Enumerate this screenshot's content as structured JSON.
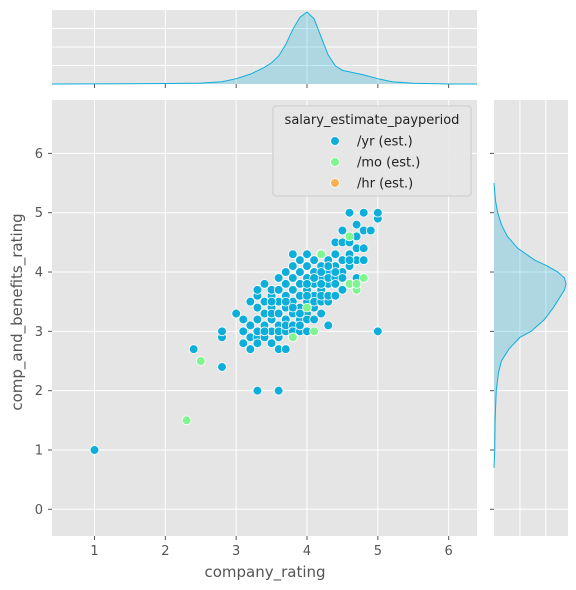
{
  "chart_data": {
    "type": "scatter",
    "xlabel": "company_rating",
    "ylabel": "comp_and_benefits_rating",
    "xlim": [
      0.4,
      6.4
    ],
    "ylim": [
      -0.45,
      6.9
    ],
    "x_ticks": [
      "1",
      "2",
      "3",
      "4",
      "5",
      "6"
    ],
    "y_ticks": [
      "0",
      "1",
      "2",
      "3",
      "4",
      "5",
      "6"
    ],
    "grid": true,
    "legend_title": "salary_estimate_payperiod",
    "legend_position": "top-right",
    "colors": {
      "/yr (est.)": "#0eaedb",
      "/mo (est.)": "#7ef58e",
      "/hr (est.)": "#f7b152"
    },
    "series": [
      {
        "name": "/yr (est.)",
        "color": "#0eaedb",
        "points": [
          [
            1.0,
            1.0
          ],
          [
            2.4,
            2.7
          ],
          [
            2.8,
            2.4
          ],
          [
            2.8,
            2.9
          ],
          [
            2.8,
            3.0
          ],
          [
            3.0,
            3.3
          ],
          [
            3.1,
            2.8
          ],
          [
            3.1,
            3.2
          ],
          [
            3.1,
            3.0
          ],
          [
            3.2,
            2.9
          ],
          [
            3.2,
            3.1
          ],
          [
            3.2,
            3.5
          ],
          [
            3.2,
            2.7
          ],
          [
            3.3,
            2.0
          ],
          [
            3.3,
            2.9
          ],
          [
            3.3,
            3.2
          ],
          [
            3.3,
            3.4
          ],
          [
            3.3,
            3.6
          ],
          [
            3.3,
            3.7
          ],
          [
            3.3,
            3.0
          ],
          [
            3.3,
            2.8
          ],
          [
            3.4,
            3.1
          ],
          [
            3.4,
            3.3
          ],
          [
            3.4,
            3.5
          ],
          [
            3.4,
            3.8
          ],
          [
            3.4,
            2.9
          ],
          [
            3.5,
            2.8
          ],
          [
            3.5,
            3.0
          ],
          [
            3.5,
            3.2
          ],
          [
            3.5,
            3.4
          ],
          [
            3.5,
            3.6
          ],
          [
            3.5,
            3.7
          ],
          [
            3.5,
            3.3
          ],
          [
            3.6,
            2.0
          ],
          [
            3.6,
            2.7
          ],
          [
            3.6,
            2.9
          ],
          [
            3.6,
            3.1
          ],
          [
            3.6,
            3.3
          ],
          [
            3.6,
            3.5
          ],
          [
            3.6,
            3.7
          ],
          [
            3.6,
            3.9
          ],
          [
            3.6,
            3.0
          ],
          [
            3.7,
            2.7
          ],
          [
            3.7,
            3.0
          ],
          [
            3.7,
            3.2
          ],
          [
            3.7,
            3.4
          ],
          [
            3.7,
            3.6
          ],
          [
            3.7,
            3.8
          ],
          [
            3.7,
            4.0
          ],
          [
            3.7,
            3.1
          ],
          [
            3.8,
            2.9
          ],
          [
            3.8,
            3.1
          ],
          [
            3.8,
            3.3
          ],
          [
            3.8,
            3.5
          ],
          [
            3.8,
            3.7
          ],
          [
            3.8,
            3.9
          ],
          [
            3.8,
            4.1
          ],
          [
            3.8,
            3.0
          ],
          [
            3.8,
            4.3
          ],
          [
            3.9,
            3.0
          ],
          [
            3.9,
            3.2
          ],
          [
            3.9,
            3.4
          ],
          [
            3.9,
            3.6
          ],
          [
            3.9,
            3.8
          ],
          [
            3.9,
            4.0
          ],
          [
            3.9,
            4.2
          ],
          [
            3.9,
            3.1
          ],
          [
            4.0,
            3.3
          ],
          [
            4.0,
            3.5
          ],
          [
            4.0,
            3.7
          ],
          [
            4.0,
            3.9
          ],
          [
            4.0,
            4.1
          ],
          [
            4.0,
            4.3
          ],
          [
            4.0,
            3.2
          ],
          [
            4.0,
            3.0
          ],
          [
            4.1,
            3.4
          ],
          [
            4.1,
            3.6
          ],
          [
            4.1,
            3.8
          ],
          [
            4.1,
            4.0
          ],
          [
            4.1,
            4.2
          ],
          [
            4.1,
            3.2
          ],
          [
            4.1,
            3.5
          ],
          [
            4.2,
            3.3
          ],
          [
            4.2,
            3.5
          ],
          [
            4.2,
            3.7
          ],
          [
            4.2,
            3.9
          ],
          [
            4.2,
            4.1
          ],
          [
            4.2,
            4.3
          ],
          [
            4.2,
            3.6
          ],
          [
            4.3,
            3.1
          ],
          [
            4.3,
            3.5
          ],
          [
            4.3,
            3.8
          ],
          [
            4.3,
            4.0
          ],
          [
            4.3,
            4.2
          ],
          [
            4.3,
            3.6
          ],
          [
            4.3,
            3.9
          ],
          [
            4.4,
            3.6
          ],
          [
            4.4,
            3.9
          ],
          [
            4.4,
            4.1
          ],
          [
            4.4,
            4.3
          ],
          [
            4.4,
            4.5
          ],
          [
            4.4,
            3.8
          ],
          [
            4.5,
            3.7
          ],
          [
            4.5,
            4.0
          ],
          [
            4.5,
            4.2
          ],
          [
            4.5,
            4.5
          ],
          [
            4.5,
            3.9
          ],
          [
            4.5,
            4.7
          ],
          [
            4.6,
            3.8
          ],
          [
            4.6,
            4.1
          ],
          [
            4.6,
            4.3
          ],
          [
            4.6,
            4.5
          ],
          [
            4.6,
            5.0
          ],
          [
            4.7,
            3.7
          ],
          [
            4.7,
            3.9
          ],
          [
            4.7,
            4.2
          ],
          [
            4.7,
            4.4
          ],
          [
            4.7,
            4.8
          ],
          [
            4.7,
            4.6
          ],
          [
            4.8,
            3.9
          ],
          [
            4.8,
            4.2
          ],
          [
            4.8,
            4.4
          ],
          [
            4.8,
            4.7
          ],
          [
            4.8,
            5.0
          ],
          [
            4.9,
            4.7
          ],
          [
            5.0,
            4.9
          ],
          [
            5.0,
            5.0
          ],
          [
            5.0,
            3.0
          ],
          [
            4.2,
            4.0
          ],
          [
            4.0,
            3.6
          ],
          [
            3.4,
            3.0
          ],
          [
            3.5,
            3.5
          ],
          [
            3.9,
            3.3
          ],
          [
            4.1,
            3.9
          ],
          [
            4.3,
            4.1
          ],
          [
            4.4,
            4.0
          ],
          [
            4.6,
            4.2
          ],
          [
            3.7,
            3.5
          ],
          [
            3.8,
            3.4
          ],
          [
            4.0,
            3.8
          ],
          [
            4.2,
            3.8
          ]
        ]
      },
      {
        "name": "/mo (est.)",
        "color": "#7ef58e",
        "points": [
          [
            2.3,
            1.5
          ],
          [
            2.5,
            2.5
          ],
          [
            3.8,
            2.9
          ],
          [
            4.1,
            3.0
          ],
          [
            4.6,
            3.8
          ],
          [
            4.7,
            3.7
          ],
          [
            4.7,
            3.8
          ],
          [
            4.8,
            3.9
          ],
          [
            4.2,
            4.3
          ],
          [
            4.6,
            4.6
          ],
          [
            4.0,
            3.4
          ]
        ]
      },
      {
        "name": "/hr (est.)",
        "color": "#f7b152",
        "points": []
      }
    ],
    "marginal_top": {
      "type": "kde",
      "x": [
        0.4,
        1.0,
        1.5,
        2.0,
        2.5,
        2.8,
        3.0,
        3.2,
        3.4,
        3.5,
        3.6,
        3.7,
        3.8,
        3.9,
        4.0,
        4.1,
        4.2,
        4.3,
        4.4,
        4.5,
        4.6,
        4.8,
        5.0,
        5.2,
        5.5,
        6.0,
        6.4
      ],
      "density": [
        0.0,
        0.002,
        0.004,
        0.006,
        0.012,
        0.03,
        0.07,
        0.13,
        0.22,
        0.28,
        0.37,
        0.52,
        0.72,
        0.88,
        0.95,
        0.86,
        0.62,
        0.38,
        0.24,
        0.18,
        0.16,
        0.12,
        0.07,
        0.03,
        0.01,
        0.0,
        0.0
      ]
    },
    "marginal_right": {
      "type": "kde",
      "y": [
        0.7,
        1.0,
        1.5,
        2.0,
        2.3,
        2.5,
        2.7,
        2.9,
        3.0,
        3.2,
        3.4,
        3.5,
        3.6,
        3.7,
        3.8,
        3.9,
        4.0,
        4.1,
        4.2,
        4.4,
        4.6,
        4.8,
        5.0,
        5.2,
        5.5
      ],
      "density": [
        0.0,
        0.01,
        0.015,
        0.03,
        0.06,
        0.1,
        0.2,
        0.35,
        0.5,
        0.68,
        0.8,
        0.85,
        0.9,
        0.95,
        0.97,
        0.95,
        0.86,
        0.72,
        0.55,
        0.32,
        0.18,
        0.1,
        0.05,
        0.02,
        0.0
      ]
    }
  }
}
